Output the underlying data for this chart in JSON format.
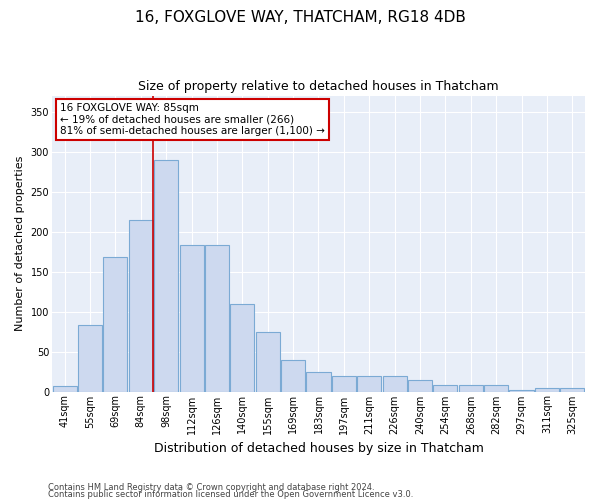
{
  "title": "16, FOXGLOVE WAY, THATCHAM, RG18 4DB",
  "subtitle": "Size of property relative to detached houses in Thatcham",
  "xlabel": "Distribution of detached houses by size in Thatcham",
  "ylabel": "Number of detached properties",
  "categories": [
    "41sqm",
    "55sqm",
    "69sqm",
    "84sqm",
    "98sqm",
    "112sqm",
    "126sqm",
    "140sqm",
    "155sqm",
    "169sqm",
    "183sqm",
    "197sqm",
    "211sqm",
    "226sqm",
    "240sqm",
    "254sqm",
    "268sqm",
    "282sqm",
    "297sqm",
    "311sqm",
    "325sqm"
  ],
  "values": [
    7,
    83,
    168,
    215,
    290,
    183,
    183,
    110,
    75,
    40,
    25,
    20,
    20,
    20,
    15,
    8,
    8,
    8,
    2,
    4,
    4
  ],
  "bar_color": "#cdd9ef",
  "bar_edge_color": "#7baad4",
  "vline_x_idx": 3,
  "vline_color": "#cc0000",
  "annotation_text": "16 FOXGLOVE WAY: 85sqm\n← 19% of detached houses are smaller (266)\n81% of semi-detached houses are larger (1,100) →",
  "annotation_box_facecolor": "#ffffff",
  "annotation_box_edgecolor": "#cc0000",
  "ylim": [
    0,
    370
  ],
  "yticks": [
    0,
    50,
    100,
    150,
    200,
    250,
    300,
    350
  ],
  "footer_line1": "Contains HM Land Registry data © Crown copyright and database right 2024.",
  "footer_line2": "Contains public sector information licensed under the Open Government Licence v3.0.",
  "title_fontsize": 11,
  "subtitle_fontsize": 9,
  "xlabel_fontsize": 9,
  "ylabel_fontsize": 8,
  "tick_fontsize": 7,
  "annotation_fontsize": 7.5,
  "footer_fontsize": 6,
  "bar_width": 0.95,
  "bg_color": "#e8eef8"
}
